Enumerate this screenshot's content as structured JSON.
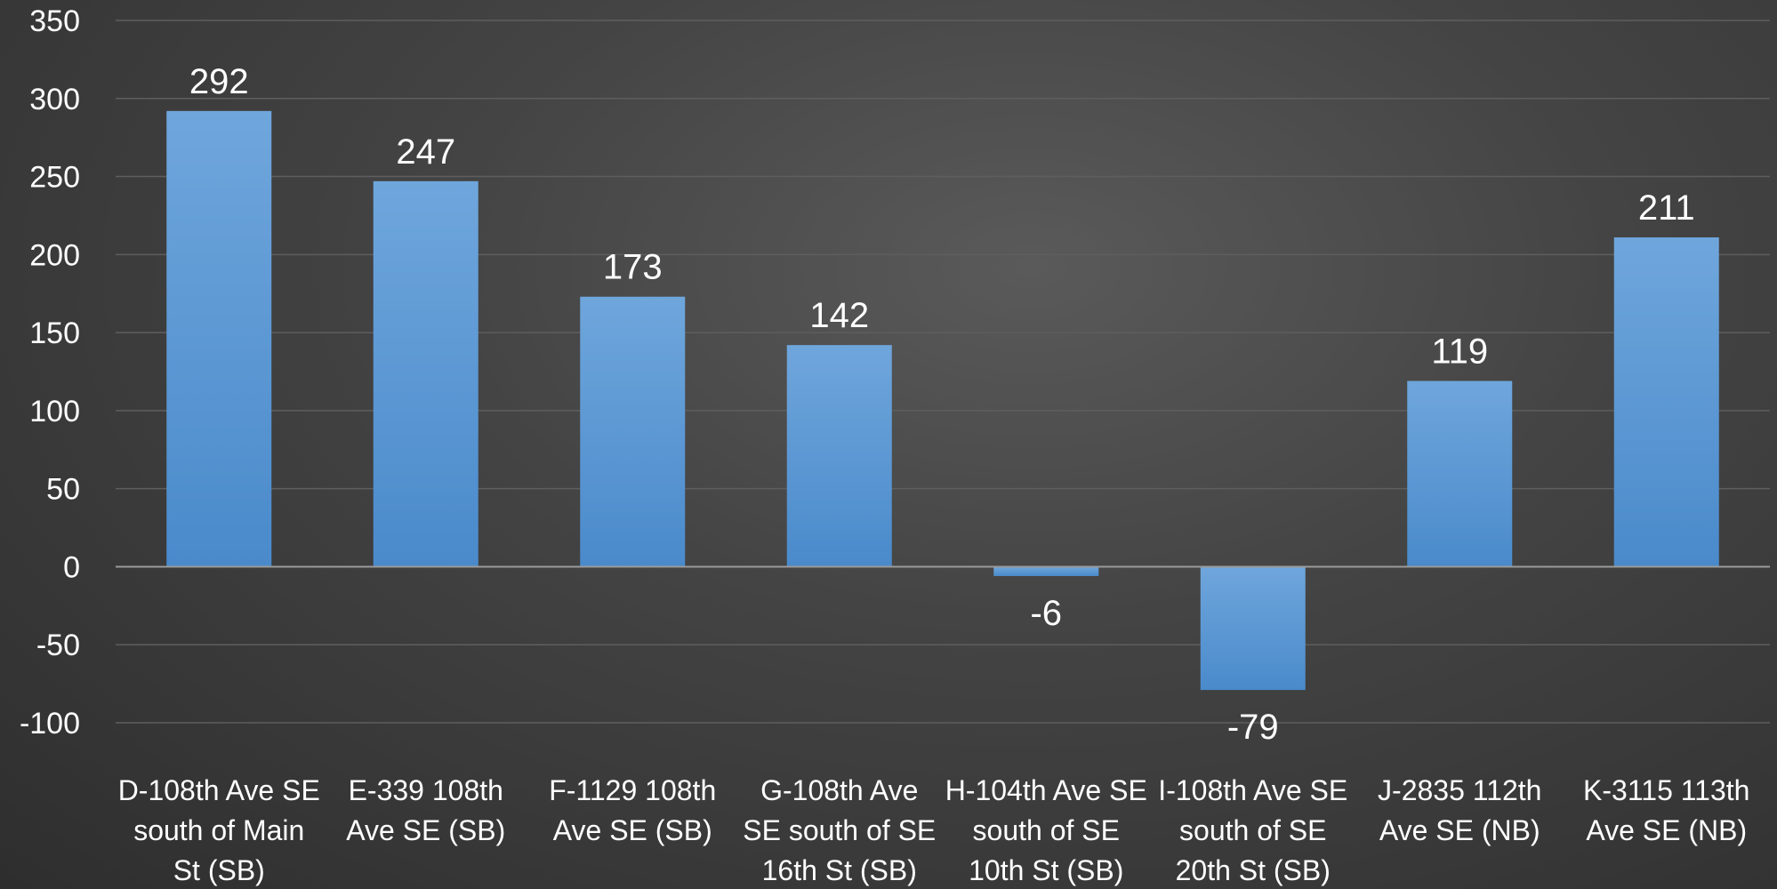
{
  "chart_data": {
    "type": "bar",
    "categories": [
      [
        "D-108th Ave SE",
        "south of Main",
        "St (SB)"
      ],
      [
        "E-339 108th",
        "Ave SE (SB)"
      ],
      [
        "F-1129 108th",
        "Ave SE (SB)"
      ],
      [
        "G-108th Ave",
        "SE south of SE",
        "16th St (SB)"
      ],
      [
        "H-104th Ave SE",
        "south of SE",
        "10th St (SB)"
      ],
      [
        "I-108th Ave SE",
        "south of SE",
        "20th St (SB)"
      ],
      [
        "J-2835 112th",
        "Ave SE (NB)"
      ],
      [
        "K-3115 113th",
        "Ave SE (NB)"
      ]
    ],
    "values": [
      292,
      247,
      173,
      142,
      -6,
      -79,
      119,
      211
    ],
    "ylim": [
      -100,
      350
    ],
    "yticks": [
      350,
      300,
      250,
      200,
      150,
      100,
      50,
      0,
      -50,
      -100
    ],
    "grid": true,
    "colors": {
      "bar": "#5b9bd5",
      "grid": "#5e5e5e",
      "axis": "#9a9a9a"
    }
  }
}
